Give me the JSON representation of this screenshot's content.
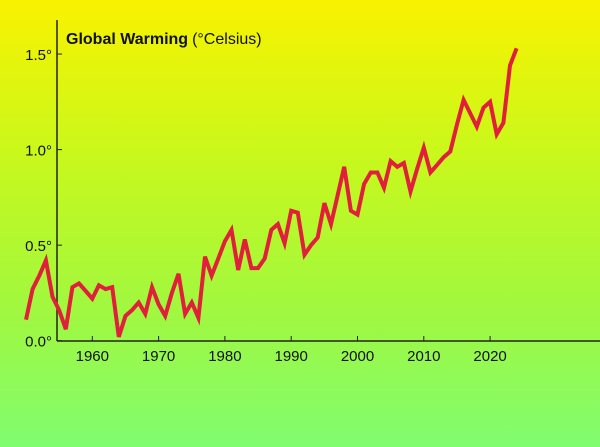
{
  "chart_data": {
    "type": "line",
    "title": "Global Warming",
    "title_unit": "(°Celsius)",
    "xlabel": "",
    "ylabel": "",
    "xlim": [
      1950,
      2024
    ],
    "ylim": [
      0,
      1.5
    ],
    "x_ticks": [
      "1960",
      "1970",
      "1980",
      "1990",
      "2000",
      "2010",
      "2020"
    ],
    "x_tick_values": [
      1960,
      1970,
      1980,
      1990,
      2000,
      2010,
      2020
    ],
    "y_ticks": [
      "0.0°",
      "0.5°",
      "1.0°",
      "1.5°"
    ],
    "y_tick_values": [
      0,
      0.5,
      1.0,
      1.5
    ],
    "grid": false,
    "line_color": "#e0203a",
    "series": [
      {
        "name": "Global Warming",
        "x": [
          1950,
          1951,
          1952,
          1953,
          1954,
          1955,
          1956,
          1957,
          1958,
          1959,
          1960,
          1961,
          1962,
          1963,
          1964,
          1965,
          1966,
          1967,
          1968,
          1969,
          1970,
          1971,
          1972,
          1973,
          1974,
          1975,
          1976,
          1977,
          1978,
          1979,
          1980,
          1981,
          1982,
          1983,
          1984,
          1985,
          1986,
          1987,
          1988,
          1989,
          1990,
          1991,
          1992,
          1993,
          1994,
          1995,
          1996,
          1997,
          1998,
          1999,
          2000,
          2001,
          2002,
          2003,
          2004,
          2005,
          2006,
          2007,
          2008,
          2009,
          2010,
          2011,
          2012,
          2013,
          2014,
          2015,
          2016,
          2017,
          2018,
          2019,
          2020,
          2021,
          2022,
          2023,
          2024
        ],
        "values": [
          0.11,
          0.27,
          0.34,
          0.42,
          0.23,
          0.16,
          0.06,
          0.28,
          0.3,
          0.26,
          0.22,
          0.29,
          0.27,
          0.28,
          0.02,
          0.13,
          0.16,
          0.2,
          0.14,
          0.28,
          0.19,
          0.13,
          0.25,
          0.35,
          0.14,
          0.2,
          0.12,
          0.44,
          0.34,
          0.43,
          0.52,
          0.58,
          0.37,
          0.53,
          0.38,
          0.38,
          0.43,
          0.58,
          0.61,
          0.51,
          0.68,
          0.67,
          0.45,
          0.5,
          0.54,
          0.72,
          0.61,
          0.76,
          0.91,
          0.68,
          0.66,
          0.82,
          0.88,
          0.88,
          0.8,
          0.94,
          0.91,
          0.93,
          0.78,
          0.9,
          1.01,
          0.88,
          0.92,
          0.96,
          0.99,
          1.13,
          1.26,
          1.19,
          1.12,
          1.22,
          1.25,
          1.08,
          1.14,
          1.44,
          1.53
        ]
      }
    ]
  }
}
